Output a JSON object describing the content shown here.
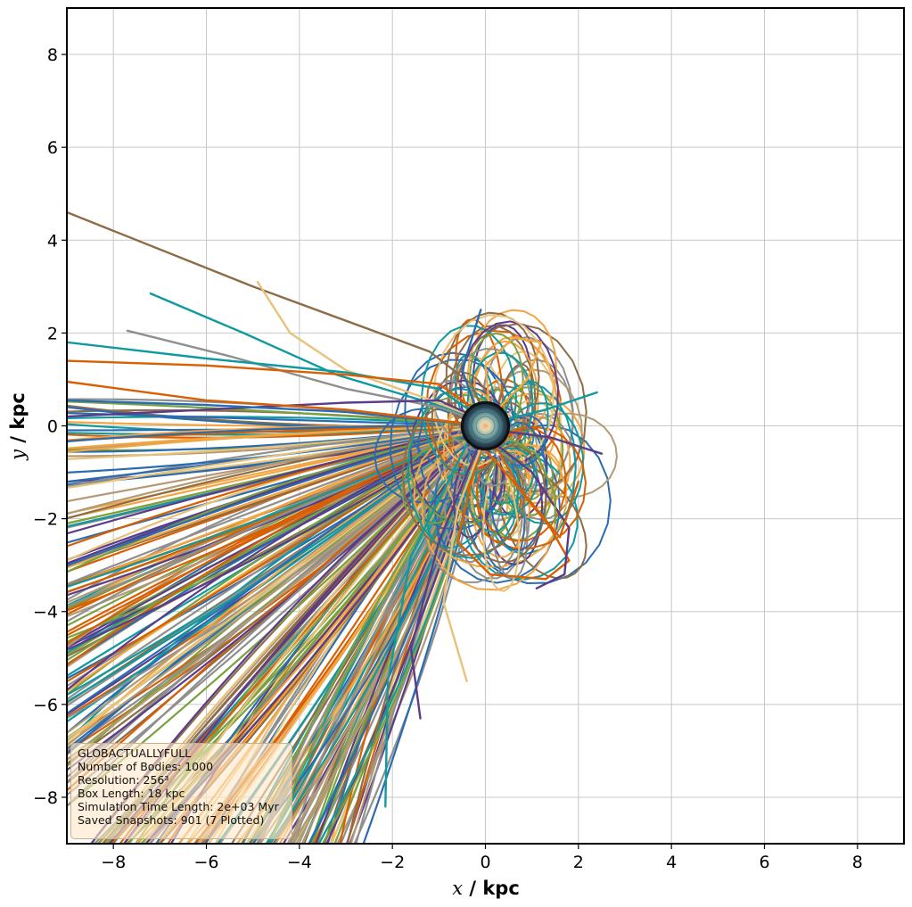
{
  "chart_data": {
    "type": "line",
    "xlabel_var": "x",
    "xlabel_unit": " / kpc",
    "ylabel_var": "y",
    "ylabel_unit": " / kpc",
    "xlim": [
      -9,
      9
    ],
    "ylim": [
      -9,
      9
    ],
    "xticks": [
      -8,
      -6,
      -4,
      -2,
      0,
      2,
      4,
      6,
      8
    ],
    "yticks": [
      -8,
      -6,
      -4,
      -2,
      0,
      2,
      4,
      6,
      8
    ],
    "grid": true,
    "central_body": {
      "x": 0,
      "y": 0,
      "radius": 0.5
    },
    "palette": [
      "#d95f02",
      "#f2a541",
      "#e6c27a",
      "#2b6cb0",
      "#0f9aa0",
      "#5b3c88",
      "#7aa140",
      "#8c6d46",
      "#8f8f8f",
      "#b49a74"
    ],
    "series": [
      {
        "color": "#8c6d46",
        "points": [
          [
            -9,
            4.6
          ],
          [
            -5,
            3.0
          ],
          [
            -1.2,
            1.6
          ],
          [
            -0.3,
            0.9
          ],
          [
            0,
            0.2
          ]
        ]
      },
      {
        "color": "#0f9aa0",
        "points": [
          [
            -7.2,
            2.85
          ],
          [
            -5.2,
            2.0
          ],
          [
            -3.2,
            1.1
          ],
          [
            -1.2,
            0.5
          ],
          [
            0,
            0.1
          ]
        ]
      },
      {
        "color": "#e6c27a",
        "points": [
          [
            -4.9,
            3.1
          ],
          [
            -4.2,
            2.0
          ],
          [
            -3.0,
            1.2
          ],
          [
            -1.3,
            0.6
          ],
          [
            0,
            0.1
          ]
        ]
      },
      {
        "color": "#8f8f8f",
        "points": [
          [
            -7.7,
            2.05
          ],
          [
            -5.5,
            1.5
          ],
          [
            -3.0,
            0.8
          ],
          [
            -1.0,
            0.4
          ],
          [
            0,
            0.05
          ]
        ]
      },
      {
        "color": "#0f9aa0",
        "points": [
          [
            -9,
            1.8
          ],
          [
            -6,
            1.45
          ],
          [
            -3,
            1.15
          ],
          [
            -1,
            0.8
          ],
          [
            0,
            0.1
          ]
        ]
      },
      {
        "color": "#d95f02",
        "points": [
          [
            -9,
            1.4
          ],
          [
            -6,
            1.3
          ],
          [
            -3,
            1.1
          ],
          [
            -1,
            0.9
          ],
          [
            0,
            0.2
          ]
        ]
      },
      {
        "color": "#5b3c88",
        "points": [
          [
            -9,
            0.2
          ],
          [
            -6,
            0.35
          ],
          [
            -3,
            0.5
          ],
          [
            -1,
            0.55
          ],
          [
            0,
            0.1
          ]
        ]
      },
      {
        "color": "#2b6cb0",
        "points": [
          [
            -9,
            0.55
          ],
          [
            -6,
            0.45
          ],
          [
            -3,
            0.3
          ],
          [
            0,
            0.0
          ]
        ]
      },
      {
        "color": "#d95f02",
        "points": [
          [
            -9,
            0.95
          ],
          [
            -6,
            0.55
          ],
          [
            -3,
            0.35
          ],
          [
            0,
            0.0
          ]
        ]
      },
      {
        "color": "#d95f02",
        "points": [
          [
            -0.2,
            -0.3
          ],
          [
            0.6,
            -1.2
          ],
          [
            1.4,
            -2.2
          ],
          [
            1.8,
            -2.9
          ],
          [
            1.3,
            -3.3
          ],
          [
            0.1,
            -3.2
          ],
          [
            -0.6,
            -2.5
          ],
          [
            -0.3,
            -1.2
          ],
          [
            0,
            -0.2
          ]
        ]
      },
      {
        "color": "#5b3c88",
        "points": [
          [
            0.1,
            -0.3
          ],
          [
            1.0,
            -1.0
          ],
          [
            1.8,
            -2.2
          ],
          [
            1.7,
            -3.2
          ],
          [
            1.1,
            -3.5
          ]
        ]
      },
      {
        "color": "#7aa140",
        "points": [
          [
            0.2,
            -0.1
          ],
          [
            1.1,
            -0.6
          ],
          [
            1.5,
            -1.5
          ],
          [
            1.5,
            -2.1
          ]
        ]
      },
      {
        "color": "#f2a541",
        "points": [
          [
            0.1,
            0.2
          ],
          [
            0.9,
            1.0
          ],
          [
            1.2,
            1.8
          ],
          [
            0.6,
            1.9
          ],
          [
            0.0,
            1.3
          ],
          [
            0.1,
            0.3
          ]
        ]
      },
      {
        "color": "#2b6cb0",
        "points": [
          [
            -0.1,
            0.1
          ],
          [
            -0.5,
            1.2
          ],
          [
            -0.1,
            2.5
          ]
        ]
      },
      {
        "color": "#0f9aa0",
        "points": [
          [
            0.3,
            0.1
          ],
          [
            1.3,
            0.35
          ],
          [
            2.4,
            0.72
          ]
        ]
      },
      {
        "color": "#5b3c88",
        "points": [
          [
            0.3,
            -0.1
          ],
          [
            1.4,
            -0.25
          ],
          [
            2.5,
            -0.6
          ]
        ]
      },
      {
        "color": "#e6c27a",
        "points": [
          [
            0.0,
            -0.2
          ],
          [
            -0.6,
            -1.8
          ],
          [
            -0.9,
            -3.8
          ],
          [
            -0.4,
            -5.5
          ]
        ]
      },
      {
        "color": "#5b3c88",
        "points": [
          [
            -0.1,
            -0.3
          ],
          [
            -1.0,
            -2.5
          ],
          [
            -1.6,
            -4.8
          ],
          [
            -1.4,
            -6.3
          ]
        ]
      },
      {
        "color": "#0f9aa0",
        "points": [
          [
            -0.3,
            -0.2
          ],
          [
            -1.6,
            -2.8
          ],
          [
            -2.1,
            -5.5
          ],
          [
            -2.15,
            -8.2
          ]
        ]
      },
      {
        "color": "#d95f02",
        "points": [
          [
            0.1,
            -0.2
          ],
          [
            0.7,
            -1.3
          ],
          [
            1.6,
            -2.4
          ],
          [
            2.0,
            -1.2
          ]
        ]
      }
    ],
    "info_box": {
      "title": "GLOBACTUALLYFULL",
      "lines": [
        "Number of Bodies: 1000",
        "Resolution: 256³",
        "Box Length: 18 kpc",
        "Simulation Time Length: 2e+03 Myr",
        "Saved Snapshots: 901 (7 Plotted)"
      ]
    }
  }
}
